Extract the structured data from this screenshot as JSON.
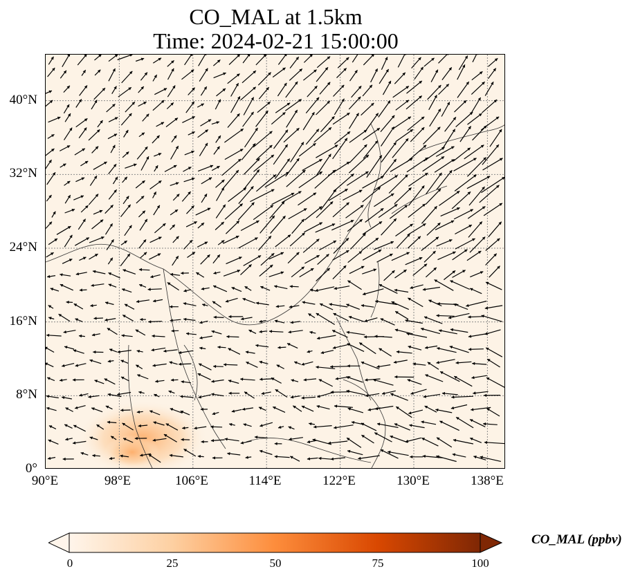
{
  "title": {
    "line1": "CO_MAL at 1.5km",
    "line2": "Time: 2024-02-21 15:00:00"
  },
  "map": {
    "lon_range": [
      90,
      140
    ],
    "lat_range": [
      0,
      45
    ],
    "lat_ticks": [
      "0°",
      "8°N",
      "16°N",
      "24°N",
      "32°N",
      "40°N"
    ],
    "lon_ticks": [
      "90°E",
      "98°E",
      "106°E",
      "114°E",
      "122°E",
      "130°E",
      "138°E"
    ],
    "gridlines": true,
    "field_color": "#fdf3e6",
    "vector_color": "#000000"
  },
  "colorbar": {
    "label": "CO_MAL (ppbv)",
    "ticks": [
      "0",
      "25",
      "50",
      "75",
      "100"
    ],
    "range": [
      0,
      100
    ],
    "colormap": [
      "#fff5eb",
      "#fdd0a2",
      "#fd8d3c",
      "#d94801",
      "#7f2704"
    ],
    "extend": "both"
  }
}
